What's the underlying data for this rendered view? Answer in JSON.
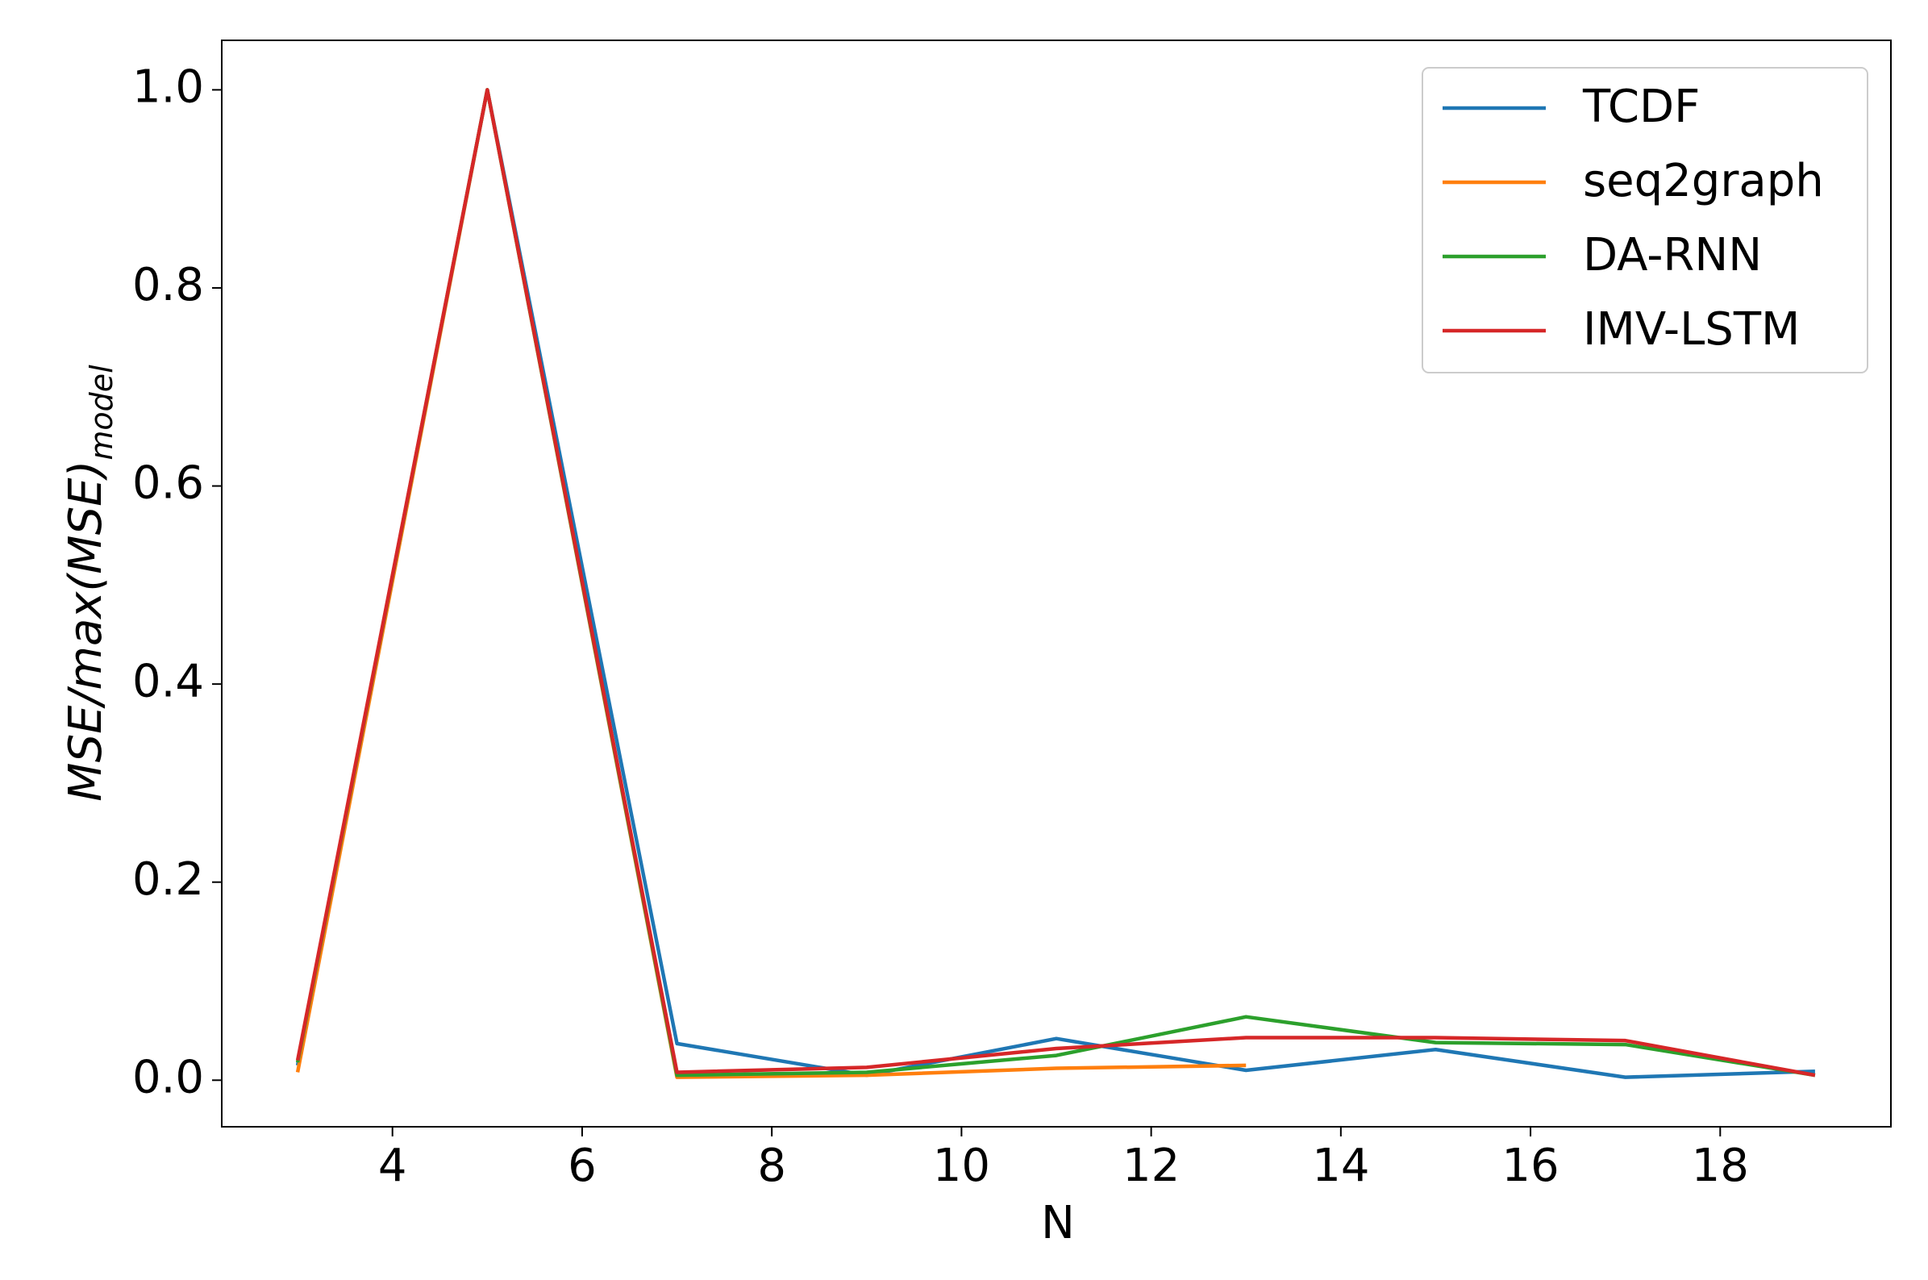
{
  "chart_data": {
    "type": "line",
    "x_label": "N",
    "y_label": "MSE/max(MSE)",
    "y_label_subscript": "model",
    "x": [
      3,
      5,
      7,
      9,
      11,
      13,
      15,
      17,
      19
    ],
    "series": [
      {
        "name": "TCDF",
        "color": "#1f77b4",
        "values": [
          0.015,
          1.0,
          0.037,
          0.005,
          0.042,
          0.01,
          0.031,
          0.003,
          0.009
        ]
      },
      {
        "name": "seq2graph",
        "color": "#ff7f0e",
        "values": [
          0.008,
          1.0,
          0.003,
          0.005,
          0.012,
          0.015,
          null,
          null,
          null
        ]
      },
      {
        "name": "DA-RNN",
        "color": "#2ca02c",
        "values": [
          0.018,
          1.0,
          0.005,
          0.008,
          0.025,
          0.064,
          0.038,
          0.036,
          0.005
        ]
      },
      {
        "name": "IMV-LSTM",
        "color": "#d62728",
        "values": [
          0.02,
          1.0,
          0.008,
          0.013,
          0.032,
          0.043,
          0.043,
          0.04,
          0.005
        ]
      }
    ],
    "xlim": [
      2.2,
      19.8
    ],
    "xticks": [
      4,
      6,
      8,
      10,
      12,
      14,
      16,
      18
    ],
    "ylim": [
      -0.047,
      1.05
    ],
    "yticks": [
      {
        "value": 0,
        "label": "0.0"
      },
      0.2,
      0.4,
      0.6,
      0.8,
      {
        "value": 1,
        "label": "1.0"
      }
    ],
    "legend": "upper right"
  }
}
